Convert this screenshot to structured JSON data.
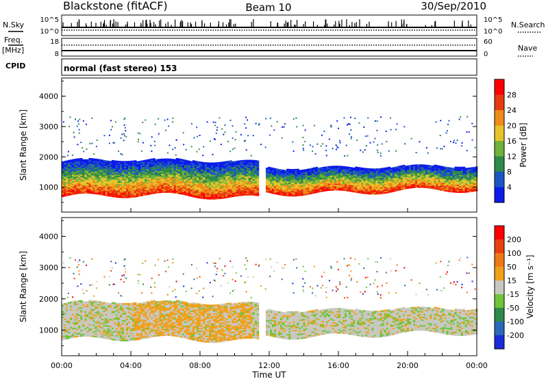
{
  "header": {
    "station": "Blackstone (fitACF)",
    "beam": "Beam 10",
    "date": "30/Sep/2010"
  },
  "top_panels": {
    "nsky_label": "N.Sky",
    "nsearch_label": "N.Search",
    "nsky_ticks": [
      "10^5",
      "10^0"
    ],
    "nsearch_ticks": [
      "10^5",
      "10^0"
    ],
    "freq_label_line1": "Freq.",
    "freq_label_line2": "[MHz]",
    "freq_ticks": [
      "18",
      "8"
    ],
    "nave_label": "Nave",
    "nave_ticks": [
      "60",
      "0"
    ],
    "cpid_label": "CPID",
    "cpid_value": "normal (fast stereo) 153"
  },
  "chart_data": [
    {
      "type": "heatmap",
      "panel": "power",
      "ylabel": "Slant Range [km]",
      "ylim": [
        180,
        4600
      ],
      "yticks": [
        "1000",
        "2000",
        "3000",
        "4000"
      ],
      "xlim": [
        0,
        24
      ],
      "colorbar_label": "Power [dB]",
      "colorbar_ticks": [
        "4",
        "8",
        "12",
        "16",
        "20",
        "24",
        "28"
      ],
      "colorbar_colors": [
        "#0d1be8",
        "#1c56c4",
        "#2e8a4a",
        "#6fb13a",
        "#e6c42a",
        "#f08a18",
        "#e83a12",
        "#ff0000"
      ],
      "scatter_bands": [
        {
          "x0": 0.0,
          "x1": 11.3,
          "lower_km": 680,
          "upper_km": 1850
        },
        {
          "x0": 11.8,
          "x1": 24.0,
          "lower_km": 850,
          "upper_km": 1650
        }
      ]
    },
    {
      "type": "heatmap",
      "panel": "velocity",
      "ylabel": "Slant Range [km]",
      "ylim": [
        180,
        4600
      ],
      "yticks": [
        "1000",
        "2000",
        "3000",
        "4000"
      ],
      "xlim": [
        0,
        24
      ],
      "xticks": [
        "00:00",
        "04:00",
        "08:00",
        "12:00",
        "16:00",
        "20:00",
        "00:00"
      ],
      "xlabel": "Time UT",
      "colorbar_label": "Velocity [m s⁻¹]",
      "colorbar_ticks": [
        "200",
        "100",
        "50",
        "15",
        "-15",
        "-50",
        "-100",
        "-200"
      ],
      "colorbar_colors": [
        "#1a2bd8",
        "#2a6ab8",
        "#2e8a4a",
        "#6fc43a",
        "#c8c8c0",
        "#f0a01a",
        "#f07818",
        "#e84010",
        "#ff0000"
      ],
      "scatter_bands": [
        {
          "x0": 0.0,
          "x1": 11.3,
          "lower_km": 680,
          "upper_km": 1850
        },
        {
          "x0": 11.8,
          "x1": 24.0,
          "lower_km": 850,
          "upper_km": 1650
        }
      ]
    }
  ]
}
